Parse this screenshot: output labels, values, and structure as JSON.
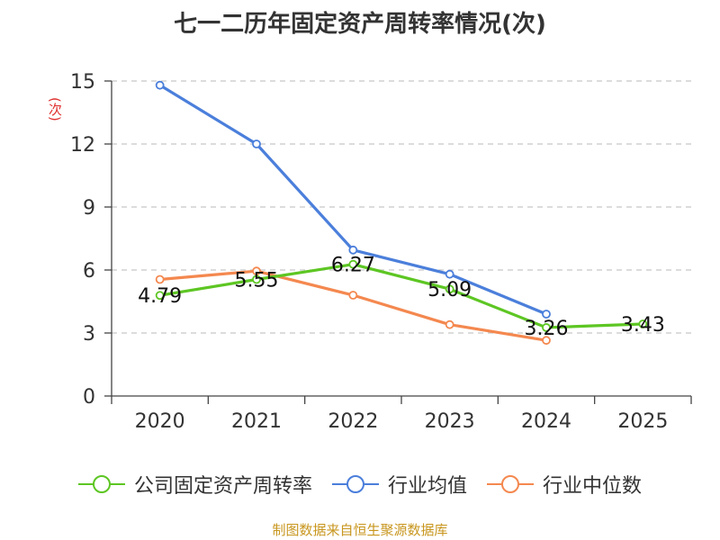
{
  "title": "七一二历年固定资产周转率情况(次)",
  "unit_label": "(次)",
  "source": "制图数据来自恒生聚源数据库",
  "colors": {
    "company": "#5dc623",
    "industry_avg": "#4b7fdb",
    "industry_median": "#f4884f",
    "grid": "#c8c8c8",
    "axis": "#444444"
  },
  "chart_data": {
    "type": "line",
    "categories": [
      "2020",
      "2021",
      "2022",
      "2023",
      "2024",
      "2025"
    ],
    "ylim": [
      0,
      15
    ],
    "yticks": [
      0,
      3,
      6,
      9,
      12,
      15
    ],
    "grid": true,
    "legend_position": "bottom",
    "series": [
      {
        "name": "公司固定资产周转率",
        "color": "#5dc623",
        "values": [
          4.79,
          5.55,
          6.27,
          5.09,
          3.26,
          3.43
        ],
        "labels": [
          "4.79",
          "5.55",
          "6.27",
          "5.09",
          "3.26",
          "3.43"
        ]
      },
      {
        "name": "行业均值",
        "color": "#4b7fdb",
        "values": [
          14.8,
          12.0,
          6.95,
          5.8,
          3.9,
          null
        ]
      },
      {
        "name": "行业中位数",
        "color": "#f4884f",
        "values": [
          5.55,
          5.95,
          4.8,
          3.4,
          2.65,
          null
        ]
      }
    ]
  }
}
